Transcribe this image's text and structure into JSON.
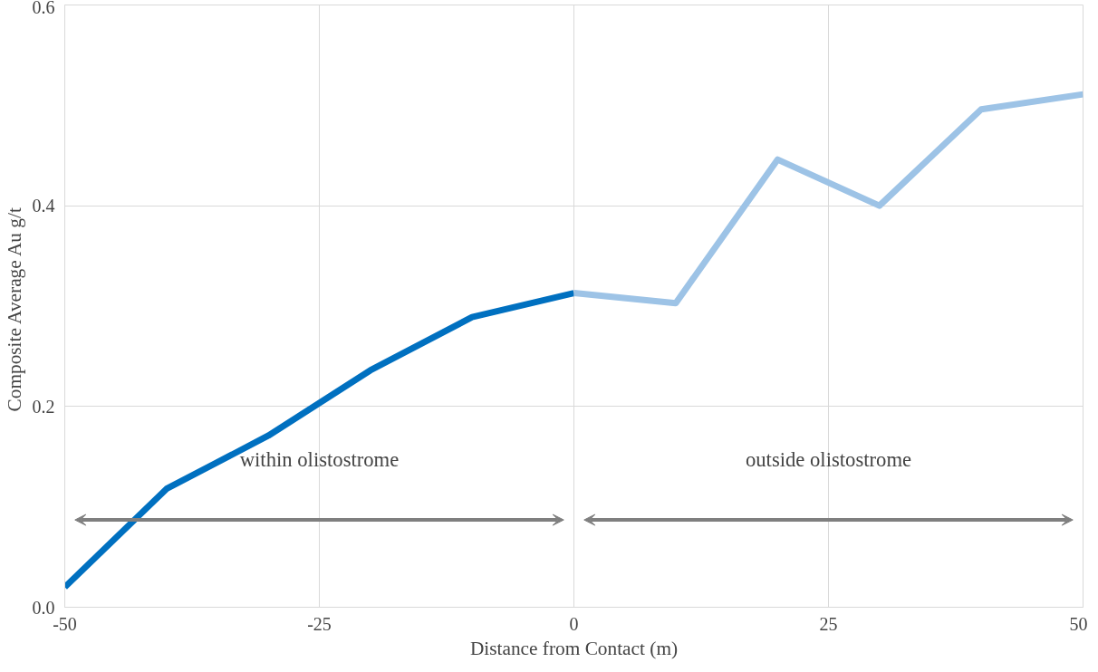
{
  "chart_data": {
    "type": "line",
    "xlabel": "Distance from Contact (m)",
    "ylabel": "Composite Average  Au g/t",
    "series": [
      {
        "color": "#0070c0",
        "x": [
          -50,
          -40,
          -30,
          -20,
          -10,
          0
        ],
        "values": [
          0.02,
          0.118,
          0.171,
          0.236,
          0.289,
          0.313
        ]
      },
      {
        "color": "#9dc3e6",
        "x": [
          0,
          10,
          20,
          30,
          40,
          50
        ],
        "values": [
          0.313,
          0.303,
          0.446,
          0.4,
          0.496,
          0.511
        ]
      }
    ],
    "annotations": [
      "within olistostrome",
      "outside olistostrome"
    ],
    "xlim": [
      -50,
      50
    ],
    "xticks": [
      -50,
      -25,
      0,
      25,
      50
    ],
    "ylim": [
      0,
      0.6
    ],
    "yticks": [
      {
        "value": 0,
        "label": "0.0"
      },
      {
        "value": 0.2,
        "label": "0.2"
      },
      {
        "value": 0.4,
        "label": "0.4"
      },
      {
        "value": 0.6,
        "label": "0.6"
      }
    ],
    "grid": true,
    "marker": "none",
    "line_style": "solid"
  }
}
